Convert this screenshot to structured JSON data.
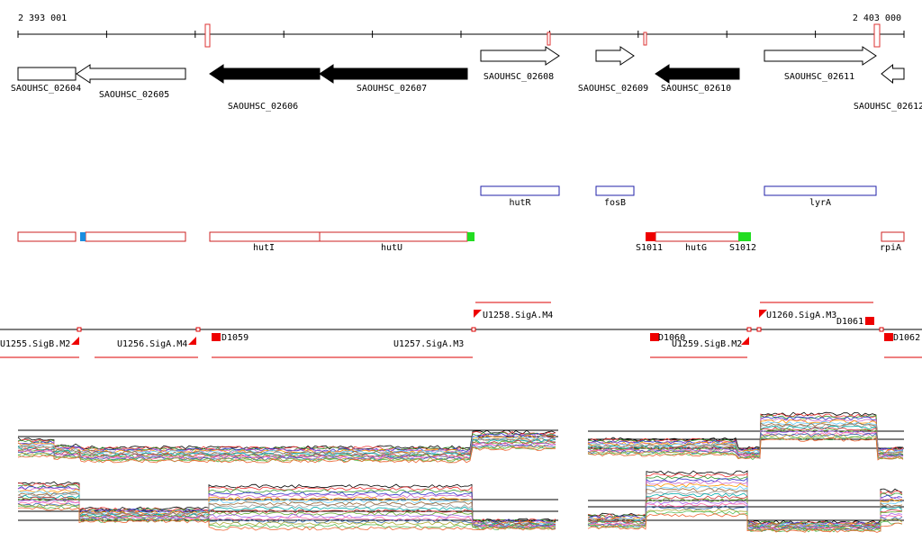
{
  "ruler": {
    "start": "2 393 001",
    "end": "2 403 000"
  },
  "genes": [
    {
      "label": "SAOUHSC_02604"
    },
    {
      "label": "SAOUHSC_02605"
    },
    {
      "label": "SAOUHSC_02606"
    },
    {
      "label": "SAOUHSC_02607"
    },
    {
      "label": "SAOUHSC_02608"
    },
    {
      "label": "SAOUHSC_02609"
    },
    {
      "label": "SAOUHSC_02610"
    },
    {
      "label": "SAOUHSC_02611"
    },
    {
      "label": "SAOUHSC_02612"
    }
  ],
  "gene_names": [
    {
      "label": "hutR"
    },
    {
      "label": "fosB"
    },
    {
      "label": "lyrA"
    }
  ],
  "features": [
    {
      "label": "hutI"
    },
    {
      "label": "hutU"
    },
    {
      "label": "S1011"
    },
    {
      "label": "hutG"
    },
    {
      "label": "S1012"
    },
    {
      "label": "rpiA"
    }
  ],
  "segments": [
    {
      "label": "U1255.SigB.M2"
    },
    {
      "label": "U1256.SigA.M4"
    },
    {
      "label": "D1059"
    },
    {
      "label": "U1257.SigA.M3"
    },
    {
      "label": "U1258.SigA.M4"
    },
    {
      "label": "D1060"
    },
    {
      "label": "U1259.SigB.M2"
    },
    {
      "label": "U1260.SigA.M3"
    },
    {
      "label": "D1061"
    },
    {
      "label": "D1062"
    }
  ]
}
